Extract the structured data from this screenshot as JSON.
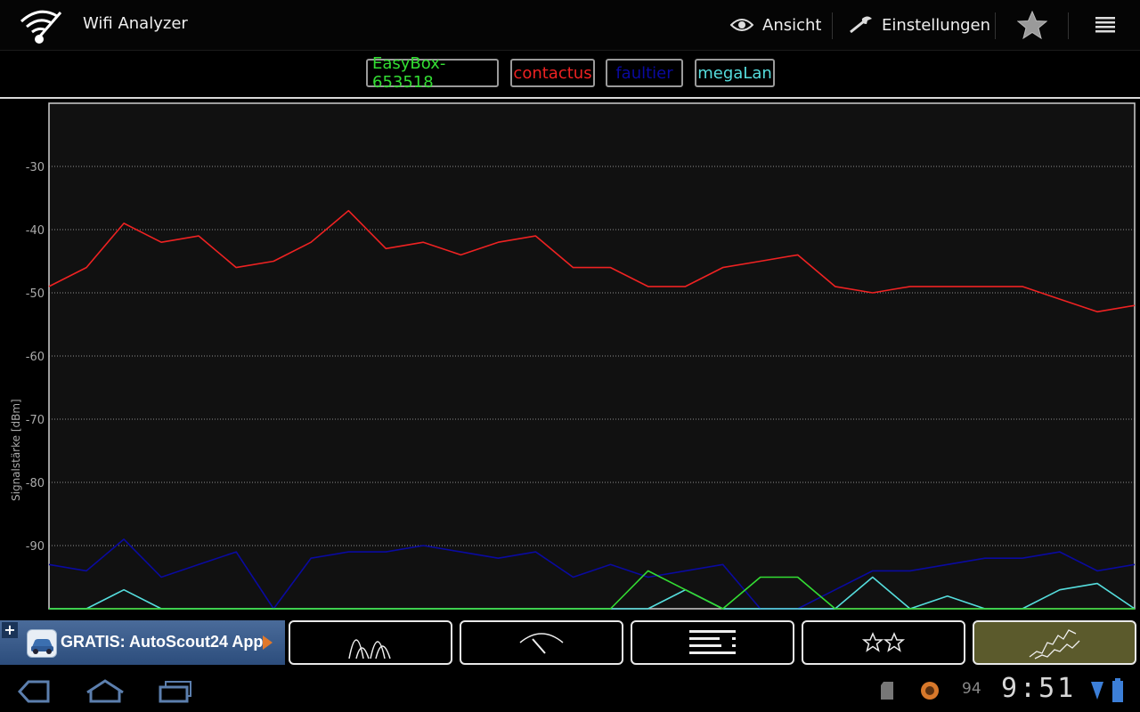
{
  "app": {
    "title": "Wifi Analyzer",
    "view_label": "Ansicht",
    "settings_label": "Einstellungen"
  },
  "legend": [
    {
      "name": "EasyBox-653518",
      "color": "#33dd33"
    },
    {
      "name": "contactus",
      "color": "#ee2222"
    },
    {
      "name": "faultier",
      "color": "#0a0aa0"
    },
    {
      "name": "megaLan",
      "color": "#55dddd"
    }
  ],
  "chart_data": {
    "type": "line",
    "ylabel": "Signalstärke [dBm]",
    "yticks": [
      -30,
      -40,
      -50,
      -60,
      -70,
      -80,
      -90
    ],
    "ylim": [
      -100,
      -20
    ],
    "grid": true,
    "series": [
      {
        "name": "contactus",
        "color": "#ee2222",
        "values": [
          -49,
          -46,
          -39,
          -42,
          -41,
          -46,
          -45,
          -42,
          -37,
          -43,
          -42,
          -44,
          -42,
          -41,
          -46,
          -46,
          -49,
          -49,
          -46,
          -45,
          -44,
          -49,
          -50,
          -49,
          -49,
          -49,
          -49,
          -51,
          -53,
          -52
        ]
      },
      {
        "name": "faultier",
        "color": "#0a0aa0",
        "values": [
          -93,
          -94,
          -89,
          -95,
          -93,
          -91,
          -100,
          -92,
          -91,
          -91,
          -90,
          -91,
          -92,
          -91,
          -95,
          -93,
          -95,
          -94,
          -93,
          -100,
          -100,
          -97,
          -94,
          -94,
          -93,
          -92,
          -92,
          -91,
          -94,
          -93
        ]
      },
      {
        "name": "megaLan",
        "color": "#55dddd",
        "values": [
          -100,
          -100,
          -97,
          -100,
          -100,
          -100,
          -100,
          -100,
          -100,
          -100,
          -100,
          -100,
          -100,
          -100,
          -100,
          -100,
          -100,
          -97,
          -100,
          -100,
          -100,
          -100,
          -95,
          -100,
          -98,
          -100,
          -100,
          -97,
          -96,
          -100
        ]
      },
      {
        "name": "EasyBox-653518",
        "color": "#33dd33",
        "values": [
          -100,
          -100,
          -100,
          -100,
          -100,
          -100,
          -100,
          -100,
          -100,
          -100,
          -100,
          -100,
          -100,
          -100,
          -100,
          -100,
          -94,
          -97,
          -100,
          -95,
          -95,
          -100,
          -100,
          -100,
          -100,
          -100,
          -100,
          -100,
          -100,
          -100
        ]
      }
    ]
  },
  "ad": {
    "text": "GRATIS: AutoScout24 App"
  },
  "tabs": [
    {
      "name": "channel-graph",
      "active": false
    },
    {
      "name": "signal-meter",
      "active": false
    },
    {
      "name": "ap-list",
      "active": false
    },
    {
      "name": "channel-rating",
      "active": false
    },
    {
      "name": "time-graph",
      "active": true
    }
  ],
  "status": {
    "battery_number": "94",
    "time": "9:51"
  }
}
